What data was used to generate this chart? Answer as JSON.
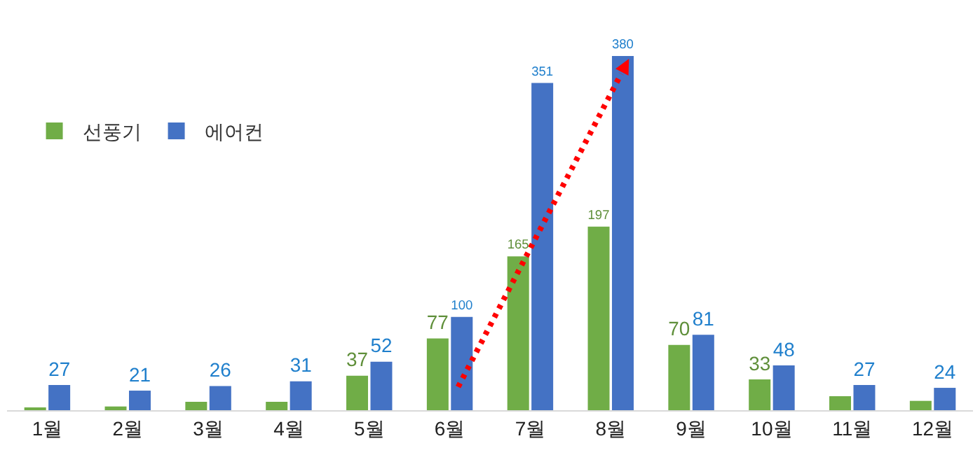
{
  "chart_data": {
    "type": "bar",
    "categories": [
      "1월",
      "2월",
      "3월",
      "4월",
      "5월",
      "6월",
      "7월",
      "8월",
      "9월",
      "10월",
      "11월",
      "12월"
    ],
    "series": [
      {
        "name": "선풍기",
        "color": "#70ad47",
        "values": [
          3,
          4,
          9,
          9,
          37,
          77,
          165,
          197,
          70,
          33,
          15,
          10
        ],
        "value_labels": [
          null,
          null,
          null,
          null,
          "37",
          "77",
          "165",
          "197",
          "70",
          "33",
          null,
          null
        ]
      },
      {
        "name": "에어컨",
        "color": "#4472c4",
        "values": [
          27,
          21,
          26,
          31,
          52,
          100,
          351,
          380,
          81,
          48,
          27,
          24
        ],
        "data_labels": true
      }
    ],
    "legend": "top left",
    "grid": false
  }
}
